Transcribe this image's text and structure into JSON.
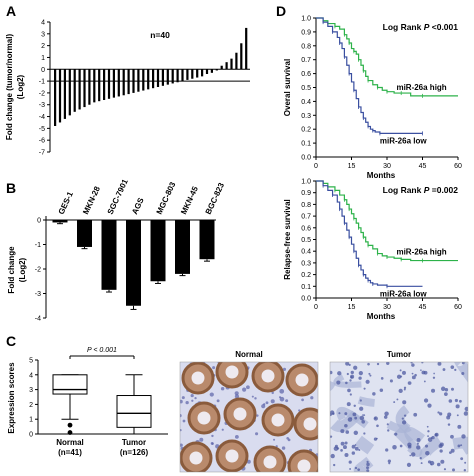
{
  "panels": [
    {
      "id": "A",
      "label": "A"
    },
    {
      "id": "B",
      "label": "B"
    },
    {
      "id": "C",
      "label": "C"
    },
    {
      "id": "D",
      "label": "D"
    }
  ],
  "chart_data": [
    {
      "panel": "A",
      "type": "bar",
      "annotation": "n=40",
      "ylabel_line1": "Fold change (tumor/normal)",
      "ylabel_line2": "(Log2)",
      "ylim": [
        -7,
        4
      ],
      "yticks": [
        4,
        3,
        2,
        1,
        0,
        -1,
        -2,
        -3,
        -4,
        -5,
        -6,
        -7
      ],
      "reference_line": -1,
      "values": [
        -4.8,
        -4.5,
        -4.2,
        -3.9,
        -3.6,
        -3.4,
        -3.2,
        -3.0,
        -2.8,
        -2.7,
        -2.6,
        -2.5,
        -2.4,
        -2.3,
        -2.2,
        -2.1,
        -2.0,
        -1.9,
        -1.8,
        -1.7,
        -1.6,
        -1.5,
        -1.4,
        -1.3,
        -1.2,
        -1.1,
        -1.0,
        -0.9,
        -0.8,
        -0.7,
        -0.6,
        -0.4,
        -0.3,
        -0.1,
        0.3,
        0.6,
        0.9,
        1.4,
        2.2,
        3.5
      ]
    },
    {
      "panel": "B",
      "type": "bar",
      "ylabel_line1": "Fold change",
      "ylabel_line2": "(Log2)",
      "ylim": [
        -4,
        0
      ],
      "yticks": [
        0,
        -1,
        -2,
        -3,
        -4
      ],
      "categories": [
        "GES-1",
        "MKN-28",
        "SGC-7901",
        "AGS",
        "MGC-803",
        "MKN-45",
        "BGC-823"
      ],
      "values": [
        -0.1,
        -1.1,
        -2.85,
        -3.5,
        -2.5,
        -2.2,
        -1.6
      ],
      "errors": [
        0.05,
        0.07,
        0.09,
        0.15,
        0.09,
        0.07,
        0.08
      ]
    },
    {
      "panel": "C",
      "type": "box",
      "ylabel": "Expression scores",
      "ylim": [
        0,
        5
      ],
      "yticks": [
        0,
        1,
        2,
        3,
        4,
        5
      ],
      "pvalue": "P < 0.001",
      "groups": [
        {
          "name": "Normal",
          "n": "(n=41)",
          "min": 1.0,
          "q1": 2.7,
          "median": 3.0,
          "q3": 4.0,
          "max": 4.0,
          "outliers": [
            0.6,
            0.1
          ]
        },
        {
          "name": "Tumor",
          "n": "(n=126)",
          "min": 0.0,
          "q1": 0.45,
          "median": 1.4,
          "q3": 2.6,
          "max": 4.0,
          "outliers": []
        }
      ],
      "images": [
        {
          "title": "Normal",
          "kind": "glandular-stain"
        },
        {
          "title": "Tumor",
          "kind": "weak-stain"
        }
      ]
    },
    {
      "panel": "D-top",
      "type": "line",
      "annotation_prefix": "Log Rank ",
      "annotation_p": "P",
      "annotation_suffix": " <0.001",
      "xlabel": "Months",
      "ylabel": "Overal survival",
      "xlim": [
        0,
        60
      ],
      "ylim": [
        0,
        1.0
      ],
      "xticks": [
        0,
        15,
        30,
        45,
        60
      ],
      "yticks": [
        0,
        0.1,
        0.2,
        0.3,
        0.4,
        0.5,
        0.6,
        0.7,
        0.8,
        0.9,
        1.0
      ],
      "series": [
        {
          "name": "miR-26a high",
          "color": "#2db24a",
          "x": [
            0,
            3,
            5,
            8,
            10,
            12,
            13,
            14,
            15,
            16,
            17,
            18,
            19,
            20,
            21,
            22,
            24,
            26,
            28,
            30,
            33,
            36,
            40,
            45,
            60
          ],
          "y": [
            1.0,
            0.98,
            0.96,
            0.94,
            0.92,
            0.88,
            0.85,
            0.82,
            0.78,
            0.76,
            0.74,
            0.7,
            0.66,
            0.62,
            0.58,
            0.55,
            0.52,
            0.5,
            0.48,
            0.47,
            0.46,
            0.46,
            0.44,
            0.44,
            0.44
          ]
        },
        {
          "name": "miR-26a low",
          "color": "#3a4fa0",
          "x": [
            0,
            3,
            5,
            7,
            9,
            10,
            11,
            12,
            13,
            14,
            15,
            16,
            17,
            18,
            19,
            20,
            21,
            22,
            23,
            24,
            25,
            27,
            30,
            45
          ],
          "y": [
            1.0,
            0.97,
            0.94,
            0.9,
            0.86,
            0.82,
            0.78,
            0.72,
            0.66,
            0.6,
            0.54,
            0.48,
            0.42,
            0.36,
            0.32,
            0.28,
            0.25,
            0.22,
            0.2,
            0.19,
            0.18,
            0.17,
            0.17,
            0.17
          ]
        }
      ]
    },
    {
      "panel": "D-bottom",
      "type": "line",
      "annotation_prefix": "Log Rank ",
      "annotation_p": "P",
      "annotation_suffix": " =0.002",
      "xlabel": "Months",
      "ylabel": "Relapse-free survival",
      "xlim": [
        0,
        60
      ],
      "ylim": [
        0,
        1.0
      ],
      "xticks": [
        0,
        15,
        30,
        45,
        60
      ],
      "yticks": [
        0,
        0.1,
        0.2,
        0.3,
        0.4,
        0.5,
        0.6,
        0.7,
        0.8,
        0.9,
        1.0
      ],
      "series": [
        {
          "name": "miR-26a high",
          "color": "#2db24a",
          "x": [
            0,
            3,
            5,
            8,
            10,
            12,
            13,
            14,
            15,
            16,
            17,
            18,
            19,
            20,
            21,
            22,
            24,
            26,
            28,
            30,
            33,
            36,
            40,
            45,
            60
          ],
          "y": [
            1.0,
            0.98,
            0.95,
            0.92,
            0.88,
            0.84,
            0.8,
            0.76,
            0.72,
            0.68,
            0.64,
            0.6,
            0.56,
            0.52,
            0.48,
            0.45,
            0.42,
            0.38,
            0.36,
            0.35,
            0.34,
            0.33,
            0.32,
            0.32,
            0.32
          ]
        },
        {
          "name": "miR-26a low",
          "color": "#3a4fa0",
          "x": [
            0,
            3,
            5,
            7,
            9,
            10,
            11,
            12,
            13,
            14,
            15,
            16,
            17,
            18,
            19,
            20,
            21,
            22,
            23,
            24,
            26,
            30,
            45
          ],
          "y": [
            1.0,
            0.96,
            0.92,
            0.88,
            0.82,
            0.76,
            0.7,
            0.64,
            0.58,
            0.52,
            0.46,
            0.4,
            0.34,
            0.28,
            0.24,
            0.2,
            0.17,
            0.15,
            0.13,
            0.12,
            0.11,
            0.1,
            0.1
          ]
        }
      ]
    }
  ]
}
